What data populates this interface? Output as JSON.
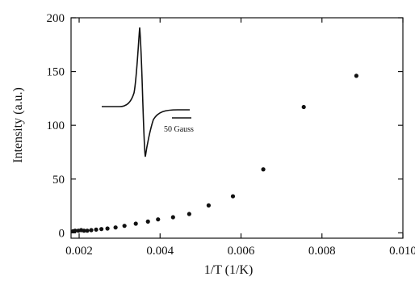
{
  "chart_data": {
    "type": "scatter",
    "title": "",
    "xlabel": "1/T (1/K)",
    "ylabel": "Intensity (a.u.)",
    "xlim": [
      0.0018,
      0.01
    ],
    "ylim": [
      -5,
      200
    ],
    "xticks": [
      0.002,
      0.004,
      0.006,
      0.008,
      0.01
    ],
    "xtick_labels": [
      "0.002",
      "0.004",
      "0.006",
      "0.008",
      "0.010"
    ],
    "yticks": [
      0,
      50,
      100,
      150,
      200
    ],
    "ytick_labels": [
      "0",
      "50",
      "100",
      "150",
      "200"
    ],
    "grid": false,
    "legend": "none",
    "marker_color": "#111111",
    "series": [
      {
        "x": [
          0.00185,
          0.0019,
          0.00198,
          0.00205,
          0.00212,
          0.0022,
          0.0023,
          0.00242,
          0.00255,
          0.0027,
          0.0029,
          0.00312,
          0.0034,
          0.0037,
          0.00395,
          0.00432,
          0.00472,
          0.0052,
          0.0058,
          0.00655,
          0.00755,
          0.00885
        ],
        "y": [
          1.5,
          2,
          2,
          2.5,
          2,
          2,
          2.5,
          3,
          3.5,
          4,
          5,
          6.5,
          8.5,
          10.5,
          12.5,
          14.5,
          17.5,
          25.5,
          34,
          59,
          117,
          146
        ]
      }
    ],
    "inset": {
      "description_type": "derivative-signal",
      "scale_label": "50 Gauss"
    }
  }
}
